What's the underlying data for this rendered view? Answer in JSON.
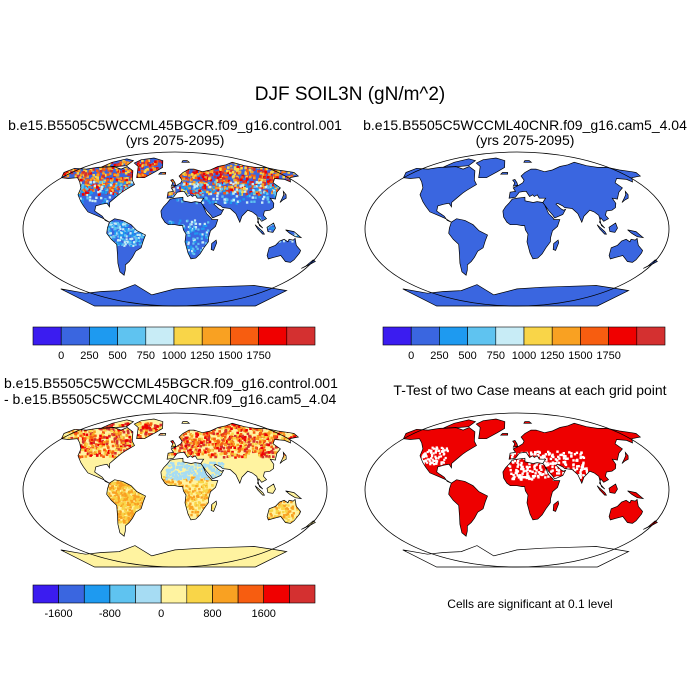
{
  "figure": {
    "title": "DJF SOIL3N (gN/m^2)"
  },
  "panels": [
    {
      "id": "case1",
      "title_line1": "b.e15.B5505C5WCCML45BGCR.f09_g16.control.001",
      "title_line2": "(yrs 2075-2095)"
    },
    {
      "id": "case2",
      "title_line1": "b.e15.B5505C5WCCML40CNR.f09_g16.cam5_4.04",
      "title_line2": "(yrs 2075-2095)"
    },
    {
      "id": "difference",
      "title_line1": "b.e15.B5505C5WCCML45BGCR.f09_g16.control.001",
      "title_line2": "- b.e15.B5505C5WCCML40CNR.f09_g16.cam5_4.04"
    },
    {
      "id": "ttest",
      "title_line1": "T-Test of two Case means at each grid point",
      "note": "Cells are significant at 0.1 level"
    }
  ],
  "colorbars": {
    "absolute": {
      "colors": [
        "#3b1cf0",
        "#3a66e0",
        "#1e9af0",
        "#5fc3f0",
        "#c8ecf6",
        "#f9d548",
        "#f9a122",
        "#f75d10",
        "#f00000",
        "#d43030"
      ],
      "labels": [
        "0",
        "250",
        "500",
        "750",
        "1000",
        "1250",
        "1500",
        "1750"
      ]
    },
    "difference": {
      "colors": [
        "#3b1cf0",
        "#3a66e0",
        "#1e9af0",
        "#5fc3f0",
        "#a6dcf3",
        "#fff3a0",
        "#f9d548",
        "#f9a122",
        "#f75d10",
        "#f00000",
        "#d43030"
      ],
      "labels": [
        "-1600",
        "-800",
        "0",
        "800",
        "1600"
      ]
    }
  },
  "map_colors": {
    "ocean": "#ffffff",
    "case2_land": "#3a66e0",
    "case1_base": "#3a66e0",
    "diff_base": "#fff3a0",
    "ttest_land": "#ee0000",
    "coast": "#000000"
  }
}
